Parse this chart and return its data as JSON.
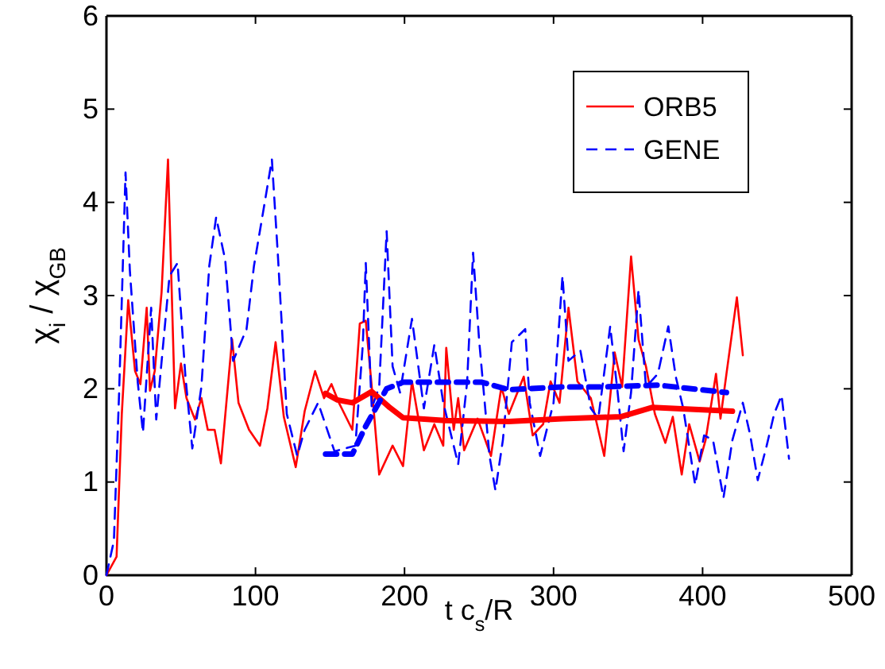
{
  "chart_data": {
    "type": "line",
    "xlabel": "t c$_{s}$/R",
    "ylabel": "χ$_{i}$ / χ$_{GB}$",
    "xlim": [
      0,
      500
    ],
    "ylim": [
      0,
      6
    ],
    "xticks": [
      0,
      100,
      200,
      300,
      400,
      500
    ],
    "yticks": [
      0,
      1,
      2,
      3,
      4,
      5,
      6
    ],
    "grid": false,
    "legend": "top right",
    "marker": "none",
    "series": [
      {
        "name": "ORB5",
        "color": "#ff0000",
        "line_style": "solid",
        "x": [
          0,
          6.8,
          10.3,
          14.6,
          19.2,
          22.8,
          27,
          29.2,
          32.4,
          37,
          41.3,
          46,
          50,
          53.7,
          59.4,
          63.7,
          68,
          72.6,
          76.8,
          84.3,
          88.6,
          95.7,
          103,
          108,
          113.5,
          119,
          127,
          133,
          140,
          146,
          151,
          156,
          165,
          170,
          174,
          178,
          183,
          192,
          199,
          205,
          213,
          220,
          226,
          228,
          233,
          236,
          240,
          249,
          258,
          265,
          270,
          280,
          286,
          293,
          298,
          304,
          310,
          316,
          325,
          330,
          334,
          341,
          346,
          352,
          357,
          362,
          368,
          375,
          380,
          386,
          391,
          398,
          402,
          409,
          412,
          416,
          423,
          427
        ],
        "values": [
          0,
          0.2,
          1.73,
          2.95,
          2.19,
          2.05,
          2.87,
          1.98,
          2.19,
          3.04,
          4.46,
          1.79,
          2.27,
          1.9,
          1.67,
          1.9,
          1.56,
          1.56,
          1.2,
          2.53,
          1.85,
          1.56,
          1.39,
          1.79,
          2.5,
          1.7,
          1.16,
          1.76,
          2.19,
          1.9,
          2.05,
          1.85,
          1.56,
          2.7,
          2.73,
          2.02,
          1.08,
          1.39,
          1.17,
          2.08,
          1.34,
          1.62,
          1.39,
          2.44,
          1.56,
          1.9,
          1.34,
          1.68,
          1.28,
          2.02,
          1.73,
          2.13,
          1.5,
          1.62,
          2.08,
          1.85,
          2.87,
          2.08,
          1.9,
          1.56,
          1.28,
          2.39,
          2.02,
          3.42,
          2.53,
          2.24,
          1.73,
          1.42,
          1.7,
          1.08,
          1.62,
          1.22,
          1.45,
          2.16,
          1.68,
          2.16,
          2.98,
          2.36
        ]
      },
      {
        "name": "GENE",
        "color": "#0000ff",
        "line_style": "dashed",
        "x": [
          0,
          5,
          8.5,
          12.8,
          15.7,
          21,
          24.5,
          30,
          33.4,
          42.3,
          47.7,
          53,
          57.6,
          63.7,
          69,
          73.6,
          79.7,
          85,
          94,
          99,
          106,
          111,
          115,
          121,
          128,
          133,
          142,
          153,
          167,
          172,
          174,
          178,
          183,
          188,
          192,
          197,
          205,
          213,
          220,
          226,
          236,
          242,
          246,
          250,
          257,
          261,
          266,
          272,
          281,
          284,
          291,
          300,
          306,
          310,
          318,
          325,
          330,
          338,
          343,
          347,
          352,
          357,
          362,
          370,
          377,
          382,
          387,
          395,
          401,
          407,
          414,
          420,
          427,
          432,
          437,
          443,
          448,
          453,
          458
        ],
        "values": [
          0,
          0.37,
          1.96,
          4.32,
          3.27,
          2.07,
          1.53,
          2.87,
          1.67,
          3.21,
          3.35,
          2.13,
          1.36,
          2.02,
          3.32,
          3.84,
          3.38,
          2.3,
          2.64,
          3.32,
          3.98,
          4.46,
          3.44,
          1.73,
          1.28,
          1.56,
          1.85,
          1.33,
          1.39,
          2.47,
          3.35,
          1.79,
          2.02,
          3.69,
          2.24,
          1.96,
          2.75,
          1.79,
          2.47,
          1.85,
          1.19,
          2.07,
          3.46,
          2.53,
          1.28,
          0.91,
          1.45,
          2.5,
          2.64,
          1.85,
          1.28,
          1.85,
          3.21,
          2.3,
          2.41,
          1.79,
          1.68,
          2.67,
          1.96,
          1.33,
          1.96,
          3.06,
          2.02,
          2.16,
          2.67,
          2.13,
          1.79,
          0.97,
          1.5,
          1.45,
          0.83,
          1.45,
          1.85,
          1.5,
          1.02,
          1.39,
          1.73,
          1.93,
          1.25
        ]
      },
      {
        "color": "#ff0000",
        "line_style": "solid",
        "x": [
          147,
          155,
          165,
          178,
          190,
          199,
          227,
          270,
          306,
          345,
          366,
          420
        ],
        "values": [
          1.95,
          1.88,
          1.85,
          1.97,
          1.8,
          1.69,
          1.66,
          1.65,
          1.68,
          1.7,
          1.8,
          1.76
        ]
      },
      {
        "color": "#0000ff",
        "line_style": "dashed",
        "x": [
          147,
          165,
          174,
          188,
          199,
          252,
          270,
          306,
          334,
          370,
          416
        ],
        "values": [
          1.3,
          1.3,
          1.6,
          2.0,
          2.07,
          2.07,
          1.99,
          2.02,
          2.02,
          2.04,
          1.96
        ]
      }
    ]
  }
}
